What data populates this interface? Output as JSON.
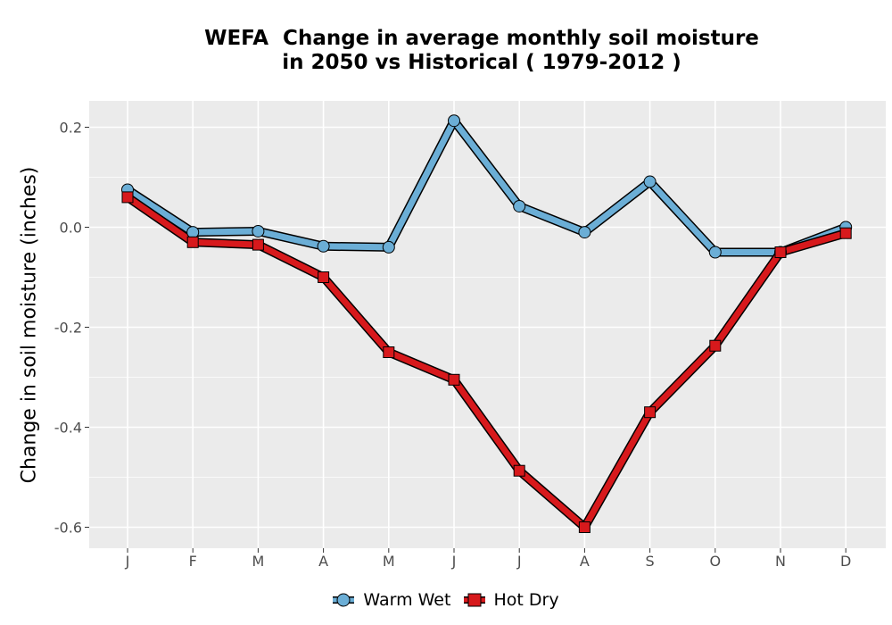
{
  "chart_data": {
    "type": "line",
    "title_lines": [
      "WEFA  Change in average monthly soil moisture",
      "in 2050 vs Historical ( 1979-2012 )"
    ],
    "xlabel": "",
    "ylabel": "Change in soil moisture (inches)",
    "categories": [
      "J",
      "F",
      "M",
      "A",
      "M",
      "J",
      "J",
      "A",
      "S",
      "O",
      "N",
      "D"
    ],
    "yticks": [
      0.2,
      0.0,
      -0.2,
      -0.4,
      -0.6
    ],
    "ytick_labels": [
      "0.2",
      "0.0",
      "-0.2",
      "-0.4",
      "-0.6"
    ],
    "ylim": [
      -0.64,
      0.25
    ],
    "grid": true,
    "legend_position": "bottom",
    "series": [
      {
        "name": "Warm Wet",
        "color": "#6baed6",
        "marker": "circle",
        "values": [
          0.075,
          -0.01,
          -0.008,
          -0.038,
          -0.04,
          0.213,
          0.042,
          -0.01,
          0.091,
          -0.05,
          -0.05,
          0.0
        ]
      },
      {
        "name": "Hot Dry",
        "color": "#d7191c",
        "marker": "square",
        "values": [
          0.06,
          -0.03,
          -0.035,
          -0.1,
          -0.25,
          -0.305,
          -0.487,
          -0.6,
          -0.37,
          -0.237,
          -0.05,
          -0.012
        ]
      }
    ]
  }
}
